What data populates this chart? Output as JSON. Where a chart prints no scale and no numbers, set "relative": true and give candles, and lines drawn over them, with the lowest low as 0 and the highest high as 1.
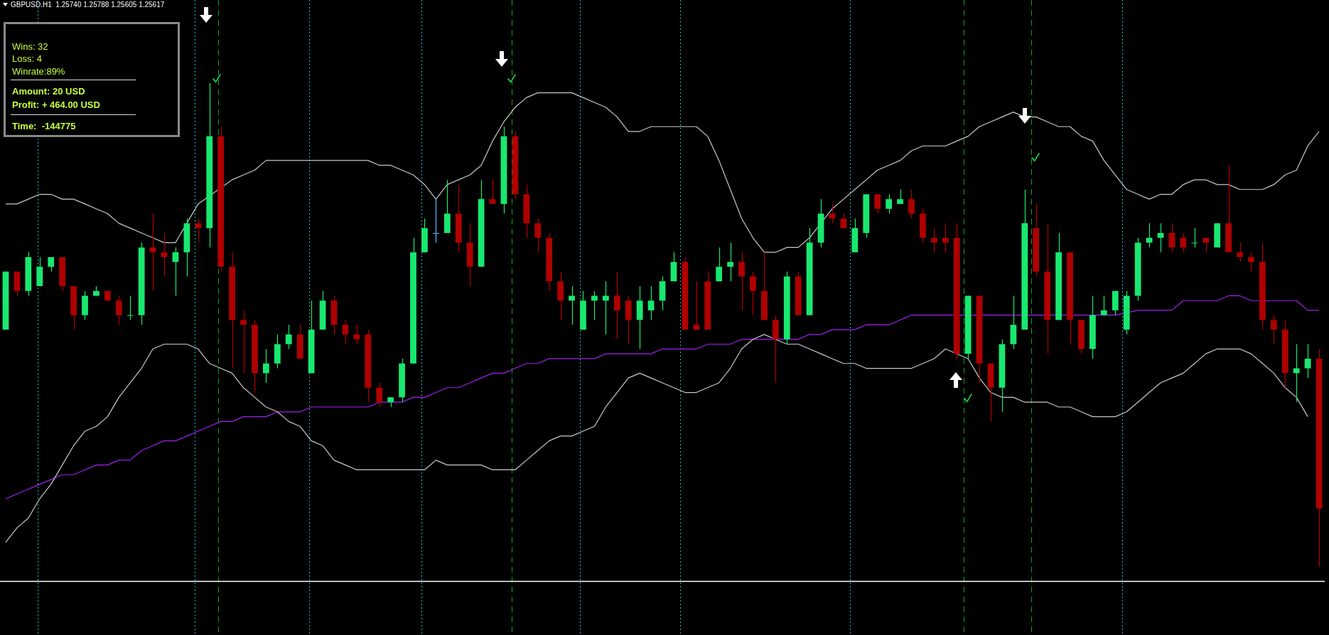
{
  "chart_data": {
    "type": "candlestick",
    "title": "GBPUSD.H1  1.25740 1.25788 1.25605 1.25617",
    "relative": true,
    "legend": false,
    "categories": [
      null,
      null,
      null,
      null,
      null,
      null,
      null,
      null,
      null,
      null,
      null,
      null,
      null,
      null,
      null,
      null,
      null,
      null,
      null,
      null,
      null,
      null,
      null,
      null,
      null,
      null,
      null,
      null,
      null,
      null,
      null,
      null,
      null,
      null,
      null,
      null,
      null,
      null,
      null,
      null,
      null,
      null,
      null,
      null,
      null,
      null,
      null,
      null,
      null,
      null,
      null,
      null,
      null,
      null,
      null,
      null,
      null,
      null,
      null,
      null,
      null,
      null,
      null,
      null,
      null,
      null,
      null,
      null,
      null,
      null,
      null,
      null,
      null,
      null,
      null,
      null,
      null,
      null,
      null,
      null,
      null,
      null,
      null,
      null,
      null,
      null,
      null,
      null,
      null,
      null,
      null,
      null,
      null,
      null,
      null,
      null,
      null,
      null,
      null,
      null,
      null,
      null,
      null,
      null,
      null,
      null,
      null,
      null,
      null,
      null,
      null,
      null,
      null,
      null,
      null,
      null,
      null
    ],
    "ohlc": [
      [
        0.49,
        0.61,
        0.49,
        0.61
      ],
      [
        0.61,
        0.61,
        0.56,
        0.57
      ],
      [
        0.57,
        0.65,
        0.56,
        0.64
      ],
      [
        0.58,
        0.64,
        0.58,
        0.62
      ],
      [
        0.62,
        0.64,
        0.61,
        0.64
      ],
      [
        0.64,
        0.64,
        0.57,
        0.58
      ],
      [
        0.58,
        0.58,
        0.49,
        0.52
      ],
      [
        0.52,
        0.57,
        0.51,
        0.56
      ],
      [
        0.56,
        0.58,
        0.56,
        0.57
      ],
      [
        0.57,
        0.57,
        0.55,
        0.55
      ],
      [
        0.55,
        0.56,
        0.5,
        0.52
      ],
      [
        0.52,
        0.56,
        0.51,
        0.52
      ],
      [
        0.52,
        0.67,
        0.5,
        0.66
      ],
      [
        0.66,
        0.73,
        0.57,
        0.65
      ],
      [
        0.65,
        0.69,
        0.6,
        0.64
      ],
      [
        0.63,
        0.66,
        0.56,
        0.65
      ],
      [
        0.65,
        0.72,
        0.6,
        0.71
      ],
      [
        0.71,
        0.72,
        0.67,
        0.7
      ],
      [
        0.7,
        1,
        0.66,
        0.89
      ],
      [
        0.89,
        0.91,
        0.61,
        0.62
      ],
      [
        0.62,
        0.65,
        0.41,
        0.51
      ],
      [
        0.51,
        0.53,
        0.4,
        0.5
      ],
      [
        0.5,
        0.51,
        0.36,
        0.4
      ],
      [
        0.4,
        0.45,
        0.38,
        0.42
      ],
      [
        0.42,
        0.48,
        0.41,
        0.46
      ],
      [
        0.46,
        0.5,
        0.45,
        0.48
      ],
      [
        0.48,
        0.5,
        0.43,
        0.43
      ],
      [
        0.4,
        0.55,
        0.4,
        0.49
      ],
      [
        0.49,
        0.57,
        0.49,
        0.55
      ],
      [
        0.55,
        0.56,
        0.48,
        0.5
      ],
      [
        0.5,
        0.51,
        0.46,
        0.48
      ],
      [
        0.48,
        0.5,
        0.46,
        0.47
      ],
      [
        0.48,
        0.49,
        0.34,
        0.37
      ],
      [
        0.37,
        0.38,
        0.33,
        0.34
      ],
      [
        0.34,
        0.35,
        0.33,
        0.35
      ],
      [
        0.35,
        0.43,
        0.34,
        0.42
      ],
      [
        0.42,
        0.68,
        0.42,
        0.65
      ],
      [
        0.65,
        0.72,
        0.65,
        0.7
      ],
      [
        0.69,
        0.76,
        0.67,
        0.69
      ],
      [
        0.69,
        0.8,
        0.69,
        0.73
      ],
      [
        0.73,
        0.79,
        0.65,
        0.67
      ],
      [
        0.67,
        0.71,
        0.58,
        0.62
      ],
      [
        0.62,
        0.8,
        0.62,
        0.76
      ],
      [
        0.76,
        0.8,
        0.75,
        0.75
      ],
      [
        0.75,
        0.91,
        0.73,
        0.89
      ],
      [
        0.89,
        0.9,
        0.76,
        0.77
      ],
      [
        0.77,
        0.79,
        0.68,
        0.71
      ],
      [
        0.71,
        0.72,
        0.65,
        0.68
      ],
      [
        0.68,
        0.69,
        0.57,
        0.59
      ],
      [
        0.59,
        0.61,
        0.51,
        0.55
      ],
      [
        0.55,
        0.58,
        0.5,
        0.56
      ],
      [
        0.49,
        0.57,
        0.49,
        0.55
      ],
      [
        0.55,
        0.57,
        0.51,
        0.56
      ],
      [
        0.55,
        0.59,
        0.48,
        0.56
      ],
      [
        0.56,
        0.61,
        0.47,
        0.53
      ],
      [
        0.55,
        0.56,
        0.46,
        0.51
      ],
      [
        0.51,
        0.58,
        0.45,
        0.55
      ],
      [
        0.53,
        0.58,
        0.51,
        0.55
      ],
      [
        0.55,
        0.6,
        0.53,
        0.59
      ],
      [
        0.59,
        0.65,
        0.59,
        0.63
      ],
      [
        0.63,
        0.64,
        0.49,
        0.49
      ],
      [
        0.5,
        0.59,
        0.49,
        0.49
      ],
      [
        0.59,
        0.61,
        0.49,
        0.49
      ],
      [
        0.59,
        0.66,
        0.59,
        0.62
      ],
      [
        0.62,
        0.67,
        0.59,
        0.63
      ],
      [
        0.63,
        0.65,
        0.53,
        0.6
      ],
      [
        0.6,
        0.61,
        0.52,
        0.57
      ],
      [
        0.57,
        0.65,
        0.51,
        0.51
      ],
      [
        0.51,
        0.52,
        0.38,
        0.47
      ],
      [
        0.47,
        0.61,
        0.46,
        0.6
      ],
      [
        0.6,
        0.61,
        0.52,
        0.52
      ],
      [
        0.52,
        0.7,
        0.52,
        0.67
      ],
      [
        0.67,
        0.76,
        0.66,
        0.73
      ],
      [
        0.73,
        0.75,
        0.71,
        0.72
      ],
      [
        0.72,
        0.73,
        0.7,
        0.7
      ],
      [
        0.65,
        0.72,
        0.65,
        0.7
      ],
      [
        0.69,
        0.77,
        0.68,
        0.77
      ],
      [
        0.77,
        0.77,
        0.73,
        0.74
      ],
      [
        0.74,
        0.77,
        0.73,
        0.76
      ],
      [
        0.75,
        0.78,
        0.75,
        0.76
      ],
      [
        0.76,
        0.78,
        0.72,
        0.73
      ],
      [
        0.73,
        0.74,
        0.67,
        0.68
      ],
      [
        0.68,
        0.7,
        0.65,
        0.67
      ],
      [
        0.68,
        0.71,
        0.65,
        0.67
      ],
      [
        0.68,
        0.71,
        0.43,
        0.44
      ],
      [
        0.44,
        0.56,
        0.43,
        0.56
      ],
      [
        0.56,
        0.56,
        0.38,
        0.42
      ],
      [
        0.42,
        0.42,
        0.3,
        0.37
      ],
      [
        0.37,
        0.47,
        0.32,
        0.46
      ],
      [
        0.46,
        0.56,
        0.45,
        0.5
      ],
      [
        0.49,
        0.78,
        0.49,
        0.71
      ],
      [
        0.7,
        0.75,
        0.6,
        0.61
      ],
      [
        0.61,
        0.71,
        0.44,
        0.51
      ],
      [
        0.51,
        0.69,
        0.51,
        0.65
      ],
      [
        0.65,
        0.65,
        0.46,
        0.51
      ],
      [
        0.51,
        0.51,
        0.44,
        0.45
      ],
      [
        0.45,
        0.56,
        0.43,
        0.52
      ],
      [
        0.52,
        0.56,
        0.52,
        0.53
      ],
      [
        0.53,
        0.57,
        0.52,
        0.57
      ],
      [
        0.49,
        0.57,
        0.48,
        0.56
      ],
      [
        0.56,
        0.68,
        0.55,
        0.67
      ],
      [
        0.67,
        0.71,
        0.66,
        0.68
      ],
      [
        0.68,
        0.71,
        0.65,
        0.69
      ],
      [
        0.69,
        0.71,
        0.65,
        0.66
      ],
      [
        0.68,
        0.69,
        0.65,
        0.66
      ],
      [
        0.67,
        0.7,
        0.66,
        0.67
      ],
      [
        0.68,
        0.68,
        0.65,
        0.67
      ],
      [
        0.66,
        0.71,
        0.66,
        0.71
      ],
      [
        0.71,
        0.83,
        0.65,
        0.65
      ],
      [
        0.65,
        0.67,
        0.63,
        0.64
      ],
      [
        0.64,
        0.65,
        0.61,
        0.63
      ],
      [
        0.63,
        0.67,
        0.49,
        0.51
      ],
      [
        0.51,
        0.52,
        0.46,
        0.49
      ],
      [
        0.49,
        0.51,
        0.37,
        0.4
      ],
      [
        0.4,
        0.46,
        0.34,
        0.41
      ],
      [
        0.41,
        0.46,
        0.39,
        0.43
      ],
      [
        0.43,
        0.45,
        0,
        0.12
      ]
    ],
    "colors": [
      "#19e870",
      "#b00000",
      "#19e870",
      "#19e870",
      "#19e870",
      "#b00000",
      "#b00000",
      "#19e870",
      "#19e870",
      "#b00000",
      "#b00000",
      "#19e870",
      "#19e870",
      "#b00000",
      "#b00000",
      "#19e870",
      "#19e870",
      "#b00000",
      "#19e870",
      "#b00000",
      "#b00000",
      "#b00000",
      "#b00000",
      "#19e870",
      "#19e870",
      "#19e870",
      "#b00000",
      "#19e870",
      "#19e870",
      "#b00000",
      "#b00000",
      "#b00000",
      "#b00000",
      "#b00000",
      "#19e870",
      "#19e870",
      "#19e870",
      "#19e870",
      "#5fb8ff",
      "#19e870",
      "#b00000",
      "#b00000",
      "#19e870",
      "#b00000",
      "#19e870",
      "#b00000",
      "#b00000",
      "#b00000",
      "#b00000",
      "#b00000",
      "#19e870",
      "#19e870",
      "#19e870",
      "#19e870",
      "#b00000",
      "#b00000",
      "#19e870",
      "#19e870",
      "#19e870",
      "#19e870",
      "#b00000",
      "#b00000",
      "#b00000",
      "#19e870",
      "#19e870",
      "#b00000",
      "#b00000",
      "#b00000",
      "#b00000",
      "#19e870",
      "#b00000",
      "#19e870",
      "#19e870",
      "#b00000",
      "#b00000",
      "#19e870",
      "#19e870",
      "#b00000",
      "#19e870",
      "#19e870",
      "#b00000",
      "#b00000",
      "#b00000",
      "#b00000",
      "#b00000",
      "#19e870",
      "#b00000",
      "#b00000",
      "#19e870",
      "#19e870",
      "#19e870",
      "#b00000",
      "#b00000",
      "#19e870",
      "#b00000",
      "#b00000",
      "#19e870",
      "#19e870",
      "#19e870",
      "#19e870",
      "#19e870",
      "#19e870",
      "#19e870",
      "#b00000",
      "#b00000",
      "#19e870",
      "#b00000",
      "#19e870",
      "#b00000",
      "#b00000",
      "#b00000",
      "#b00000",
      "#b00000",
      "#b00000",
      "#19e870",
      "#19e870",
      "#b00000"
    ],
    "series": [
      {
        "type": "line",
        "color": "#c8c8c8",
        "values": [
          0.75,
          0.75,
          0.76,
          0.77,
          0.77,
          0.76,
          0.76,
          0.75,
          0.74,
          0.73,
          0.71,
          0.7,
          0.69,
          0.68,
          0.67,
          0.67,
          0.71,
          0.75,
          null,
          null,
          0.8,
          0.81,
          0.82,
          0.84,
          0.84,
          0.84,
          0.84,
          0.84,
          0.84,
          0.84,
          0.84,
          0.84,
          0.84,
          0.83,
          0.83,
          0.82,
          0.81,
          0.79,
          0.76,
          0.79,
          0.8,
          0.81,
          0.83,
          0.88,
          0.92,
          0.95,
          0.97,
          0.98,
          0.98,
          0.98,
          0.98,
          0.97,
          0.96,
          0.95,
          0.93,
          0.9,
          0.9,
          0.91,
          0.91,
          0.91,
          0.91,
          0.91,
          0.89,
          0.84,
          0.78,
          0.72,
          0.68,
          0.65,
          0.65,
          0.66,
          0.66,
          0.68,
          null,
          0.74,
          0.76,
          0.78,
          0.8,
          0.82,
          0.83,
          0.84,
          0.86,
          0.87,
          0.87,
          0.87,
          0.88,
          0.89,
          0.91,
          0.92,
          0.93,
          0.94,
          0.93,
          0.93,
          0.92,
          0.91,
          0.91,
          0.89,
          0.88,
          0.84,
          0.81,
          0.78,
          0.77,
          0.76,
          0.77,
          0.77,
          0.79,
          0.8,
          0.8,
          0.79,
          0.79,
          0.78,
          0.78,
          0.78,
          0.79,
          0.81,
          0.82,
          0.87,
          0.9
        ]
      },
      {
        "type": "line",
        "color": "#c8c8c8",
        "values": [
          0.05,
          0.08,
          0.1,
          0.14,
          0.17,
          0.21,
          0.25,
          0.28,
          0.29,
          0.31,
          0.35,
          0.38,
          0.41,
          0.45,
          0.46,
          0.46,
          0.46,
          0.45,
          0.42,
          0.41,
          0.4,
          0.37,
          0.35,
          0.33,
          0.32,
          0.3,
          0.29,
          0.26,
          0.25,
          0.22,
          0.21,
          0.2,
          0.2,
          0.2,
          0.2,
          0.2,
          0.2,
          0.2,
          0.22,
          0.21,
          0.21,
          0.21,
          0.21,
          0.2,
          0.2,
          0.2,
          0.22,
          0.24,
          0.26,
          0.27,
          0.27,
          0.28,
          0.29,
          0.33,
          0.36,
          0.39,
          0.4,
          0.39,
          0.38,
          0.37,
          0.36,
          0.36,
          0.37,
          0.38,
          0.41,
          0.45,
          0.47,
          0.48,
          0.47,
          0.46,
          0.46,
          0.45,
          0.44,
          0.43,
          0.42,
          0.42,
          0.41,
          0.41,
          0.41,
          0.41,
          0.41,
          0.42,
          0.43,
          0.45,
          null,
          0.43,
          0.39,
          0.36,
          0.35,
          0.35,
          0.34,
          0.34,
          0.34,
          0.33,
          0.33,
          0.32,
          0.31,
          0.31,
          0.31,
          0.32,
          0.34,
          0.36,
          0.38,
          0.39,
          0.4,
          0.42,
          0.44,
          0.45,
          0.45,
          0.45,
          0.44,
          0.42,
          0.4,
          0.37,
          0.35,
          0.31,
          null
        ]
      },
      {
        "type": "line",
        "color": "#a020f0",
        "values": [
          0.14,
          0.15,
          0.16,
          0.17,
          0.18,
          0.19,
          0.19,
          0.2,
          0.21,
          0.21,
          0.22,
          0.22,
          0.24,
          0.25,
          0.26,
          0.26,
          0.27,
          0.28,
          0.29,
          0.3,
          0.3,
          0.31,
          0.31,
          0.31,
          0.32,
          0.32,
          0.32,
          0.33,
          0.33,
          0.33,
          0.33,
          0.33,
          0.33,
          0.34,
          0.34,
          0.34,
          0.35,
          0.35,
          0.36,
          0.37,
          0.37,
          0.38,
          0.39,
          0.4,
          0.4,
          0.41,
          0.42,
          0.42,
          0.43,
          0.43,
          0.43,
          0.43,
          0.43,
          0.44,
          0.44,
          0.44,
          0.44,
          0.44,
          0.45,
          0.45,
          0.45,
          0.45,
          0.46,
          0.46,
          0.46,
          0.47,
          0.47,
          0.47,
          null,
          null,
          0.47,
          0.48,
          0.48,
          0.49,
          0.49,
          0.49,
          0.5,
          0.5,
          0.5,
          0.51,
          0.52,
          0.52,
          0.52,
          0.52,
          null,
          null,
          null,
          0.52,
          0.52,
          0.52,
          null,
          0.52,
          null,
          null,
          null,
          0.52,
          null,
          null,
          0.52,
          null,
          0.53,
          0.53,
          0.53,
          0.53,
          0.55,
          0.55,
          0.55,
          0.55,
          0.56,
          0.56,
          0.55,
          null,
          0.55,
          0.55,
          0.55,
          0.53,
          0.53
        ]
      }
    ],
    "ref_lines": [
      {
        "axis": "y",
        "value": -0.03,
        "color": "#ffffff"
      }
    ],
    "annotations": [
      "Wins: 32",
      "Loss: 4",
      "Winrate:89%",
      "Amount: 20 USD",
      "Profit: + 464.00 USD",
      "Time:  -144775"
    ]
  }
}
